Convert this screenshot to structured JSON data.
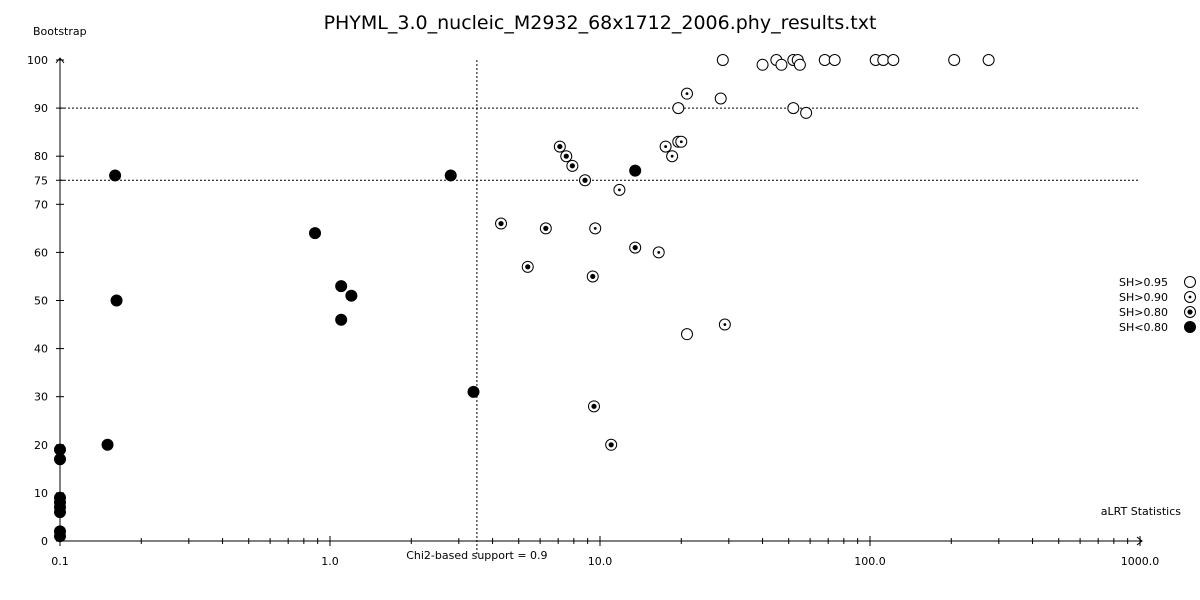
{
  "chart_data": {
    "type": "scatter",
    "title": "PHYML_3.0_nucleic_M2932_68x1712_2006.phy_results.txt",
    "xlabel": "aLRT Statistics",
    "ylabel": "Bootstrap",
    "xscale": "log",
    "xlim": [
      0.1,
      1000.0
    ],
    "ylim": [
      0,
      100
    ],
    "xticks": [
      "0.1",
      "1.0",
      "10.0",
      "100.0",
      "1000.0"
    ],
    "yticks": [
      "0",
      "10",
      "20",
      "30",
      "40",
      "50",
      "60",
      "70",
      "75",
      "80",
      "90",
      "100"
    ],
    "reference_lines": {
      "horizontal": [
        75,
        90
      ],
      "vertical": {
        "x": 3.5,
        "label": "Chi2-based support = 0.9"
      }
    },
    "legend_position": "right",
    "series": [
      {
        "name": "SH>0.95",
        "marker": "open-circle",
        "points": [
          [
            28.5,
            100
          ],
          [
            40,
            99
          ],
          [
            45,
            100
          ],
          [
            47,
            99
          ],
          [
            52,
            100
          ],
          [
            54,
            100
          ],
          [
            55,
            99
          ],
          [
            68,
            100
          ],
          [
            74,
            100
          ],
          [
            105,
            100
          ],
          [
            112,
            100
          ],
          [
            122,
            100
          ],
          [
            205,
            100
          ],
          [
            275,
            100
          ],
          [
            19.5,
            90
          ],
          [
            28,
            92
          ],
          [
            52,
            90
          ],
          [
            58,
            89
          ],
          [
            21,
            43
          ]
        ]
      },
      {
        "name": "SH>0.90",
        "marker": "dot-circle",
        "points": [
          [
            21,
            93
          ],
          [
            17.5,
            82
          ],
          [
            19.5,
            83
          ],
          [
            20,
            83
          ],
          [
            18.5,
            80
          ],
          [
            11.8,
            73
          ],
          [
            9.6,
            65
          ],
          [
            16.5,
            60
          ],
          [
            29,
            45
          ]
        ]
      },
      {
        "name": "SH>0.80",
        "marker": "bullseye",
        "points": [
          [
            7.1,
            82
          ],
          [
            7.5,
            80
          ],
          [
            7.9,
            78
          ],
          [
            8.8,
            75
          ],
          [
            4.3,
            66
          ],
          [
            6.3,
            65
          ],
          [
            13.5,
            61
          ],
          [
            5.4,
            57
          ],
          [
            9.4,
            55
          ],
          [
            9.5,
            28
          ],
          [
            11,
            20
          ]
        ]
      },
      {
        "name": "SH<0.80",
        "marker": "filled-circle",
        "points": [
          [
            0.16,
            76
          ],
          [
            2.8,
            76
          ],
          [
            13.5,
            77
          ],
          [
            0.88,
            64
          ],
          [
            1.1,
            53
          ],
          [
            1.2,
            51
          ],
          [
            1.1,
            46
          ],
          [
            0.162,
            50
          ],
          [
            3.4,
            31
          ],
          [
            0.15,
            20
          ],
          [
            0.1,
            19
          ],
          [
            0.1,
            17
          ],
          [
            0.1,
            9
          ],
          [
            0.1,
            8
          ],
          [
            0.1,
            7
          ],
          [
            0.1,
            6
          ],
          [
            0.1,
            2
          ],
          [
            0.1,
            1
          ]
        ]
      }
    ]
  }
}
